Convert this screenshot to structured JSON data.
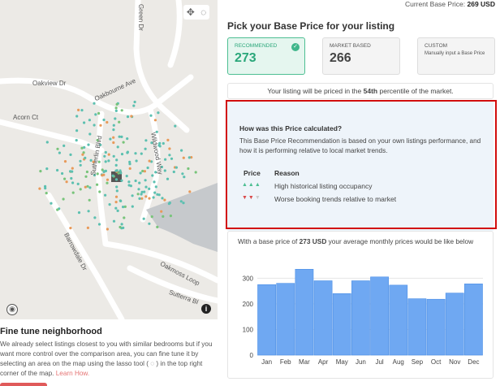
{
  "header": {
    "current_label": "Current Base Price:",
    "current_value": "269 USD"
  },
  "title": "Pick your Base Price for your listing",
  "options": [
    {
      "label": "RECOMMENDED",
      "value": "273",
      "selected": true,
      "color": "#2aa77a"
    },
    {
      "label": "MARKET BASED",
      "value": "266",
      "selected": false
    },
    {
      "label": "CUSTOM",
      "description": "Manually input a Base Price",
      "selected": false
    }
  ],
  "percentile": {
    "prefix": "Your listing will be priced in the",
    "value": "54th",
    "suffix": "percentile of the market."
  },
  "calculation": {
    "title": "How was this Price calculated?",
    "text": "This Base Price Recommendation is based on your own listings performance, and how it is performing relative to local market trends.",
    "col_price": "Price",
    "col_reason": "Reason",
    "reasons": [
      {
        "arrows": "up-up-up",
        "text": "High historical listing occupancy"
      },
      {
        "arrows": "down-down-grey",
        "text": "Worse booking trends relative to market"
      }
    ]
  },
  "monthly": {
    "prefix": "With a base price of",
    "price": "273 USD",
    "suffix": "your average monthly prices would be like below"
  },
  "chart_data": {
    "type": "bar",
    "categories": [
      "Jan",
      "Feb",
      "Mar",
      "Apr",
      "May",
      "Jun",
      "Jul",
      "Aug",
      "Sep",
      "Oct",
      "Nov",
      "Dec"
    ],
    "values": [
      275,
      280,
      335,
      290,
      240,
      290,
      305,
      273,
      220,
      218,
      242,
      278
    ],
    "yticks": [
      0,
      100,
      200,
      300
    ],
    "ylim": [
      0,
      355
    ],
    "bar_color": "#6fa8f2",
    "bar_stroke": "#4c8fe6"
  },
  "map": {
    "streets": [
      "Oakview Dr",
      "Oakbourne Ave",
      "Acorn Ct",
      "Sutherlin Blvd",
      "Wildwood Way",
      "Barrowdale Dr",
      "Oakmoss Loop",
      "Sutterra Bl",
      "Green Dr"
    ],
    "tools": [
      "move-icon",
      "lasso-icon"
    ],
    "colors": {
      "dot_teal": "#5cc0b0",
      "dot_green": "#78c47a",
      "dot_orange": "#e89a5a",
      "water": "#c6c9cc"
    }
  },
  "fine_tune": {
    "title": "Fine tune neighborhood",
    "text": "We already select listings closest to you with similar bedrooms but if you want more control over the comparison area, you can fine tune it by selecting an area on the map using the lasso tool ( ◌ ) in the top right corner of the map.",
    "link": "Learn How."
  }
}
